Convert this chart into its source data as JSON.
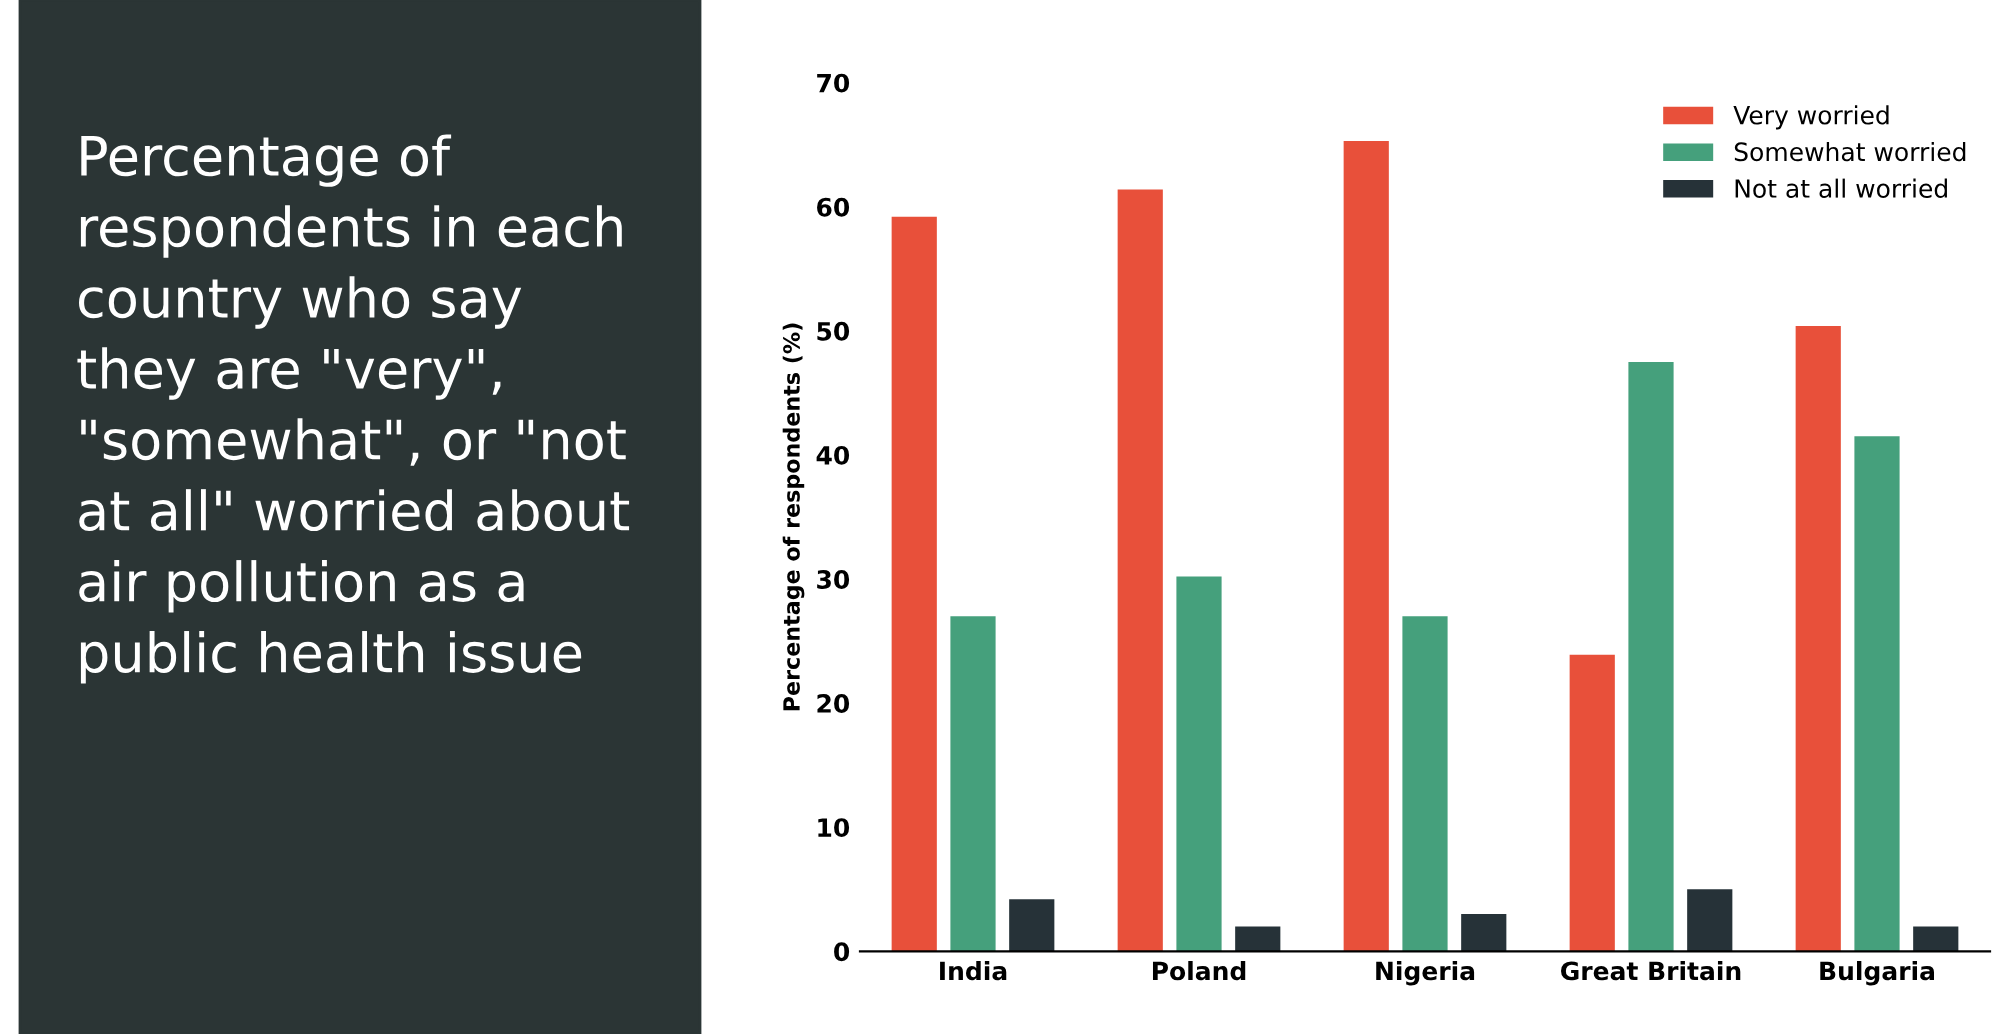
{
  "chart_data": {
    "type": "bar",
    "title": "Percentage of\nrespondents in each\ncountry who say\nthey are \"very\",\n\"somewhat\", or \"not\nat all\" worried about\nair pollution as a\npublic health issue",
    "ylabel": "Percentage of respondents (%)",
    "categories": [
      "India",
      "Poland",
      "Nigeria",
      "Great Britain",
      "Bulgaria"
    ],
    "series": [
      {
        "name": "Very worried",
        "color": "#e8503a",
        "values": [
          59.2,
          61.4,
          65.3,
          23.9,
          50.4
        ]
      },
      {
        "name": "Somewhat worried",
        "color": "#45a07c",
        "values": [
          27,
          30.2,
          27,
          47.5,
          41.5
        ]
      },
      {
        "name": "Not at all worried",
        "color": "#263238",
        "values": [
          4.2,
          2,
          3,
          5,
          2
        ]
      }
    ],
    "ylim": [
      0,
      70
    ],
    "yticks": [
      0,
      10,
      20,
      30,
      40,
      50,
      60,
      70
    ],
    "grid": false,
    "legend": "top right"
  }
}
